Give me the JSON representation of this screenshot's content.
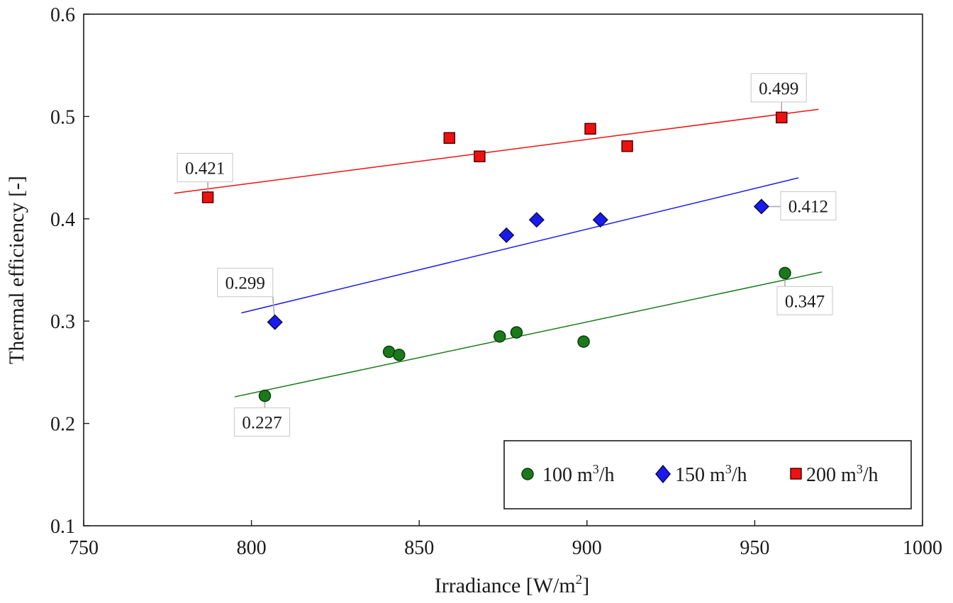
{
  "chart_data": {
    "type": "scatter",
    "xlabel": "Irradiance [W/m",
    "xlabel_sup": "2",
    "xlabel_tail": "]",
    "ylabel": "Thermal efficiency [-]",
    "xlim": [
      750,
      1000
    ],
    "ylim": [
      0.1,
      0.6
    ],
    "x_ticks": [
      "750",
      "800",
      "850",
      "900",
      "950",
      "1000"
    ],
    "y_ticks": [
      "0.1",
      "0.2",
      "0.3",
      "0.4",
      "0.5",
      "0.6"
    ],
    "grid": false,
    "legend_position": "bottom-right",
    "series": [
      {
        "name": "100 m",
        "name_sup": "3",
        "name_tail": "/h",
        "marker": "circle",
        "color": "#1a7a1a",
        "points": [
          {
            "x": 804,
            "y": 0.227
          },
          {
            "x": 841,
            "y": 0.27
          },
          {
            "x": 844,
            "y": 0.267
          },
          {
            "x": 874,
            "y": 0.285
          },
          {
            "x": 879,
            "y": 0.289
          },
          {
            "x": 899,
            "y": 0.28
          },
          {
            "x": 959,
            "y": 0.347
          }
        ],
        "trendline": {
          "x": [
            795,
            970
          ],
          "y": [
            0.226,
            0.348
          ]
        }
      },
      {
        "name": "150 m",
        "name_sup": "3",
        "name_tail": "/h",
        "marker": "diamond",
        "color": "#1a1aee",
        "points": [
          {
            "x": 807,
            "y": 0.299
          },
          {
            "x": 876,
            "y": 0.384
          },
          {
            "x": 885,
            "y": 0.399
          },
          {
            "x": 904,
            "y": 0.399
          },
          {
            "x": 952,
            "y": 0.412
          }
        ],
        "trendline": {
          "x": [
            797,
            963
          ],
          "y": [
            0.308,
            0.44
          ]
        }
      },
      {
        "name": "200 m",
        "name_sup": "3",
        "name_tail": "/h",
        "marker": "square",
        "color": "#ee1111",
        "points": [
          {
            "x": 787,
            "y": 0.421
          },
          {
            "x": 859,
            "y": 0.479
          },
          {
            "x": 868,
            "y": 0.461
          },
          {
            "x": 901,
            "y": 0.488
          },
          {
            "x": 912,
            "y": 0.471
          },
          {
            "x": 958,
            "y": 0.499
          }
        ],
        "trendline": {
          "x": [
            777,
            969
          ],
          "y": [
            0.425,
            0.507
          ]
        }
      }
    ],
    "annotations": [
      {
        "text": "0.227",
        "x": 804,
        "y": 0.227,
        "side": "below"
      },
      {
        "text": "0.299",
        "x": 807,
        "y": 0.299,
        "side": "upper-left"
      },
      {
        "text": "0.421",
        "x": 787,
        "y": 0.421,
        "side": "above"
      },
      {
        "text": "0.412",
        "x": 952,
        "y": 0.412,
        "side": "right"
      },
      {
        "text": "0.347",
        "x": 959,
        "y": 0.347,
        "side": "lower-right"
      },
      {
        "text": "0.499",
        "x": 958,
        "y": 0.499,
        "side": "above"
      }
    ]
  }
}
